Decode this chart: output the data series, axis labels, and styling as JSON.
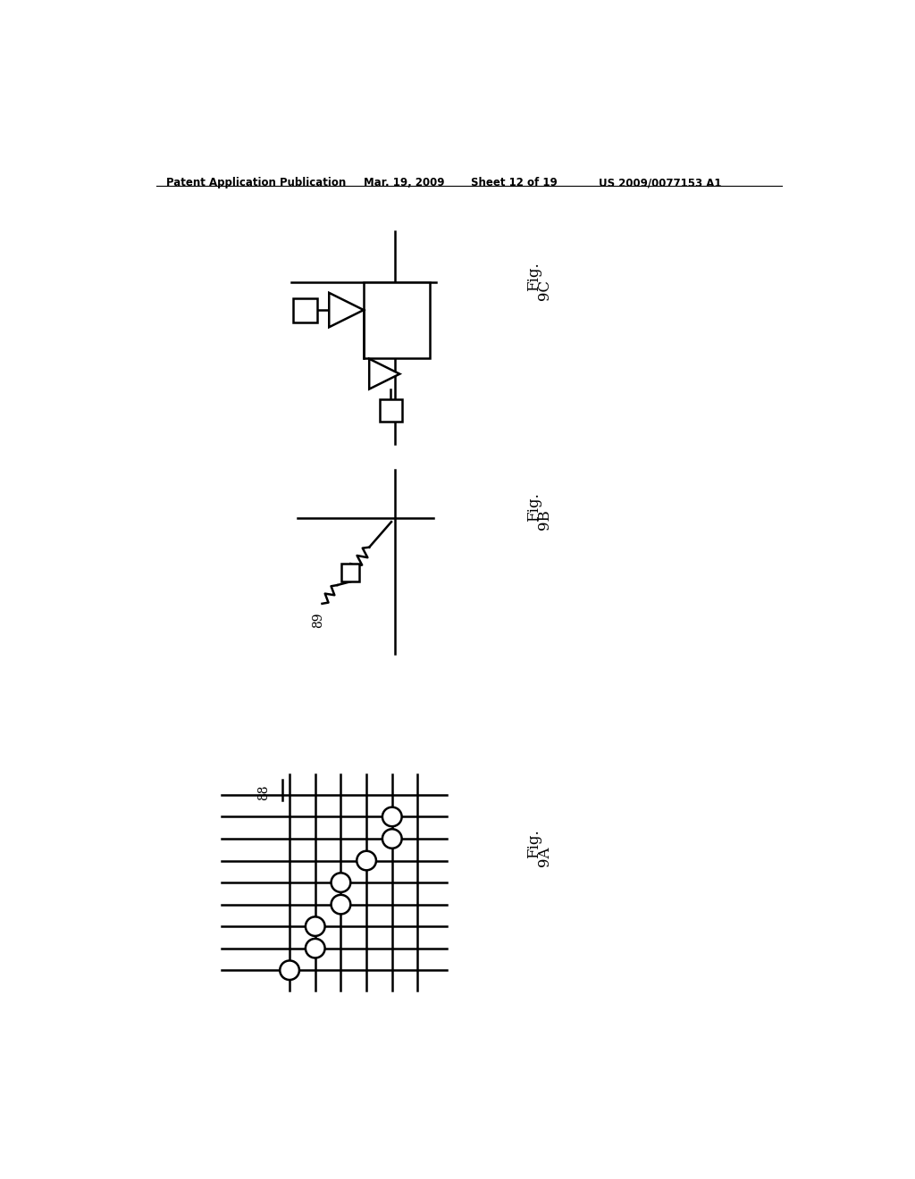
{
  "background_color": "#ffffff",
  "header_text": "Patent Application Publication",
  "header_date": "Mar. 19, 2009",
  "header_sheet": "Sheet 12 of 19",
  "header_patent": "US 2009/0077153 A1",
  "fig_9c_label": "9C",
  "fig_9b_label": "9B",
  "fig_9a_label": "9A",
  "fig_prefix": "Fig.",
  "label_88": "88",
  "label_89": "89"
}
